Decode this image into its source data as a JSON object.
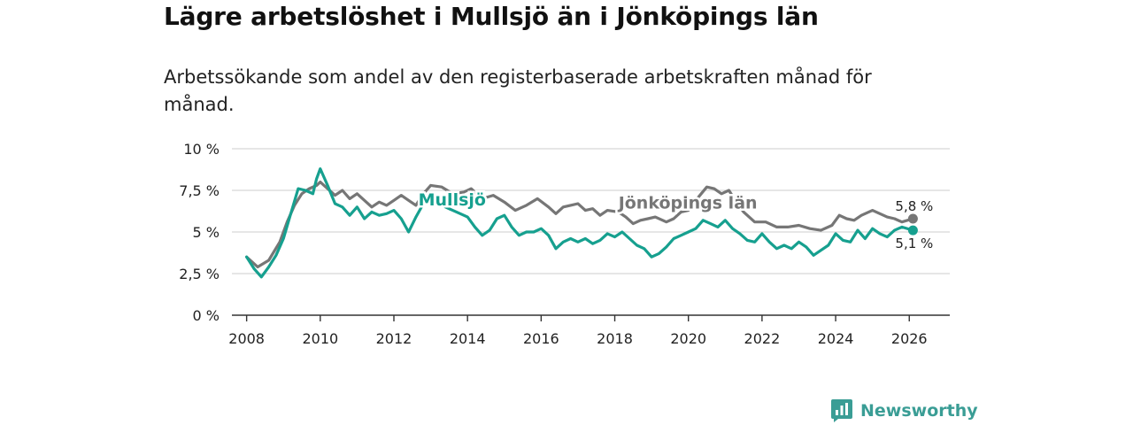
{
  "header": {
    "title": "Lägre arbetslöshet i Mullsjö än i Jönköpings län",
    "subtitle": "Arbetssökande som andel av den registerbaserade arbetskraften månad för månad."
  },
  "colors": {
    "mullsjo": "#16a08f",
    "lan": "#767676",
    "grid": "#d6d6d6",
    "axis": "#333333",
    "brand": "#3a9d95"
  },
  "chart_data": {
    "type": "line",
    "title": "Lägre arbetslöshet i Mullsjö än i Jönköpings län",
    "xlabel": "",
    "ylabel": "",
    "xlim": [
      2007.6,
      2027.1
    ],
    "ylim": [
      0,
      10
    ],
    "grid": true,
    "x_ticks": [
      2008,
      2010,
      2012,
      2014,
      2016,
      2018,
      2020,
      2022,
      2024,
      2026
    ],
    "x_tick_labels": [
      "2008",
      "2010",
      "2012",
      "2014",
      "2016",
      "2018",
      "2020",
      "2022",
      "2024",
      "2026"
    ],
    "y_ticks": [
      0,
      2.5,
      5,
      7.5,
      10
    ],
    "y_tick_labels": [
      "0 %",
      "2,5 %",
      "5 %",
      "7,5 %",
      "10 %"
    ],
    "series": [
      {
        "name": "Jönköpings län",
        "end_label": "5,8 %",
        "points": [
          [
            2008.0,
            3.5
          ],
          [
            2008.3,
            2.9
          ],
          [
            2008.6,
            3.3
          ],
          [
            2008.9,
            4.4
          ],
          [
            2009.1,
            5.6
          ],
          [
            2009.3,
            6.6
          ],
          [
            2009.5,
            7.3
          ],
          [
            2009.7,
            7.6
          ],
          [
            2009.9,
            7.8
          ],
          [
            2010.0,
            8.0
          ],
          [
            2010.2,
            7.6
          ],
          [
            2010.4,
            7.2
          ],
          [
            2010.6,
            7.5
          ],
          [
            2010.8,
            7.0
          ],
          [
            2011.0,
            7.3
          ],
          [
            2011.2,
            6.9
          ],
          [
            2011.4,
            6.5
          ],
          [
            2011.6,
            6.8
          ],
          [
            2011.8,
            6.6
          ],
          [
            2012.0,
            6.9
          ],
          [
            2012.2,
            7.2
          ],
          [
            2012.4,
            6.9
          ],
          [
            2012.6,
            6.6
          ],
          [
            2012.8,
            7.3
          ],
          [
            2013.0,
            7.8
          ],
          [
            2013.3,
            7.7
          ],
          [
            2013.6,
            7.3
          ],
          [
            2013.9,
            7.4
          ],
          [
            2014.1,
            7.6
          ],
          [
            2014.4,
            7.0
          ],
          [
            2014.7,
            7.2
          ],
          [
            2015.0,
            6.8
          ],
          [
            2015.3,
            6.3
          ],
          [
            2015.6,
            6.6
          ],
          [
            2015.9,
            7.0
          ],
          [
            2016.2,
            6.5
          ],
          [
            2016.4,
            6.1
          ],
          [
            2016.6,
            6.5
          ],
          [
            2016.8,
            6.6
          ],
          [
            2017.0,
            6.7
          ],
          [
            2017.2,
            6.3
          ],
          [
            2017.4,
            6.4
          ],
          [
            2017.6,
            6.0
          ],
          [
            2017.8,
            6.3
          ],
          [
            2018.1,
            6.2
          ],
          [
            2018.3,
            5.9
          ],
          [
            2018.5,
            5.5
          ],
          [
            2018.7,
            5.7
          ],
          [
            2018.9,
            5.8
          ],
          [
            2019.1,
            5.9
          ],
          [
            2019.4,
            5.6
          ],
          [
            2019.6,
            5.8
          ],
          [
            2019.8,
            6.2
          ],
          [
            2020.0,
            6.3
          ],
          [
            2020.2,
            6.9
          ],
          [
            2020.5,
            7.7
          ],
          [
            2020.7,
            7.6
          ],
          [
            2020.9,
            7.3
          ],
          [
            2021.1,
            7.5
          ],
          [
            2021.3,
            6.8
          ],
          [
            2021.5,
            6.2
          ],
          [
            2021.8,
            5.6
          ],
          [
            2022.1,
            5.6
          ],
          [
            2022.4,
            5.3
          ],
          [
            2022.7,
            5.3
          ],
          [
            2023.0,
            5.4
          ],
          [
            2023.3,
            5.2
          ],
          [
            2023.6,
            5.1
          ],
          [
            2023.9,
            5.4
          ],
          [
            2024.1,
            6.0
          ],
          [
            2024.3,
            5.8
          ],
          [
            2024.5,
            5.7
          ],
          [
            2024.7,
            6.0
          ],
          [
            2025.0,
            6.3
          ],
          [
            2025.2,
            6.1
          ],
          [
            2025.4,
            5.9
          ],
          [
            2025.6,
            5.8
          ],
          [
            2025.8,
            5.6
          ],
          [
            2026.1,
            5.8
          ]
        ]
      },
      {
        "name": "Mullsjö",
        "end_label": "5,1 %",
        "points": [
          [
            2008.0,
            3.5
          ],
          [
            2008.2,
            2.8
          ],
          [
            2008.4,
            2.3
          ],
          [
            2008.6,
            2.9
          ],
          [
            2008.8,
            3.6
          ],
          [
            2009.0,
            4.6
          ],
          [
            2009.2,
            6.1
          ],
          [
            2009.4,
            7.6
          ],
          [
            2009.6,
            7.5
          ],
          [
            2009.8,
            7.3
          ],
          [
            2009.9,
            8.2
          ],
          [
            2010.0,
            8.8
          ],
          [
            2010.2,
            7.8
          ],
          [
            2010.4,
            6.7
          ],
          [
            2010.6,
            6.5
          ],
          [
            2010.8,
            6.0
          ],
          [
            2011.0,
            6.5
          ],
          [
            2011.2,
            5.8
          ],
          [
            2011.4,
            6.2
          ],
          [
            2011.6,
            6.0
          ],
          [
            2011.8,
            6.1
          ],
          [
            2012.0,
            6.3
          ],
          [
            2012.2,
            5.8
          ],
          [
            2012.4,
            5.0
          ],
          [
            2012.6,
            5.9
          ],
          [
            2012.8,
            6.7
          ],
          [
            2013.0,
            7.2
          ],
          [
            2013.2,
            6.8
          ],
          [
            2013.4,
            6.5
          ],
          [
            2013.6,
            6.3
          ],
          [
            2013.8,
            6.1
          ],
          [
            2014.0,
            5.9
          ],
          [
            2014.2,
            5.3
          ],
          [
            2014.4,
            4.8
          ],
          [
            2014.6,
            5.1
          ],
          [
            2014.8,
            5.8
          ],
          [
            2015.0,
            6.0
          ],
          [
            2015.2,
            5.3
          ],
          [
            2015.4,
            4.8
          ],
          [
            2015.6,
            5.0
          ],
          [
            2015.8,
            5.0
          ],
          [
            2016.0,
            5.2
          ],
          [
            2016.2,
            4.8
          ],
          [
            2016.4,
            4.0
          ],
          [
            2016.6,
            4.4
          ],
          [
            2016.8,
            4.6
          ],
          [
            2017.0,
            4.4
          ],
          [
            2017.2,
            4.6
          ],
          [
            2017.4,
            4.3
          ],
          [
            2017.6,
            4.5
          ],
          [
            2017.8,
            4.9
          ],
          [
            2018.0,
            4.7
          ],
          [
            2018.2,
            5.0
          ],
          [
            2018.4,
            4.6
          ],
          [
            2018.6,
            4.2
          ],
          [
            2018.8,
            4.0
          ],
          [
            2019.0,
            3.5
          ],
          [
            2019.2,
            3.7
          ],
          [
            2019.4,
            4.1
          ],
          [
            2019.6,
            4.6
          ],
          [
            2019.8,
            4.8
          ],
          [
            2020.0,
            5.0
          ],
          [
            2020.2,
            5.2
          ],
          [
            2020.4,
            5.7
          ],
          [
            2020.6,
            5.5
          ],
          [
            2020.8,
            5.3
          ],
          [
            2021.0,
            5.7
          ],
          [
            2021.2,
            5.2
          ],
          [
            2021.4,
            4.9
          ],
          [
            2021.6,
            4.5
          ],
          [
            2021.8,
            4.4
          ],
          [
            2022.0,
            4.9
          ],
          [
            2022.2,
            4.4
          ],
          [
            2022.4,
            4.0
          ],
          [
            2022.6,
            4.2
          ],
          [
            2022.8,
            4.0
          ],
          [
            2023.0,
            4.4
          ],
          [
            2023.2,
            4.1
          ],
          [
            2023.4,
            3.6
          ],
          [
            2023.6,
            3.9
          ],
          [
            2023.8,
            4.2
          ],
          [
            2024.0,
            4.9
          ],
          [
            2024.2,
            4.5
          ],
          [
            2024.4,
            4.4
          ],
          [
            2024.6,
            5.1
          ],
          [
            2024.8,
            4.6
          ],
          [
            2025.0,
            5.2
          ],
          [
            2025.2,
            4.9
          ],
          [
            2025.4,
            4.7
          ],
          [
            2025.6,
            5.1
          ],
          [
            2025.8,
            5.3
          ],
          [
            2026.1,
            5.1
          ]
        ]
      }
    ],
    "annotations": [
      "Mullsjö",
      "Jönköpings län"
    ]
  },
  "brand": {
    "name": "Newsworthy",
    "icon": "newsworthy-logo-icon"
  }
}
